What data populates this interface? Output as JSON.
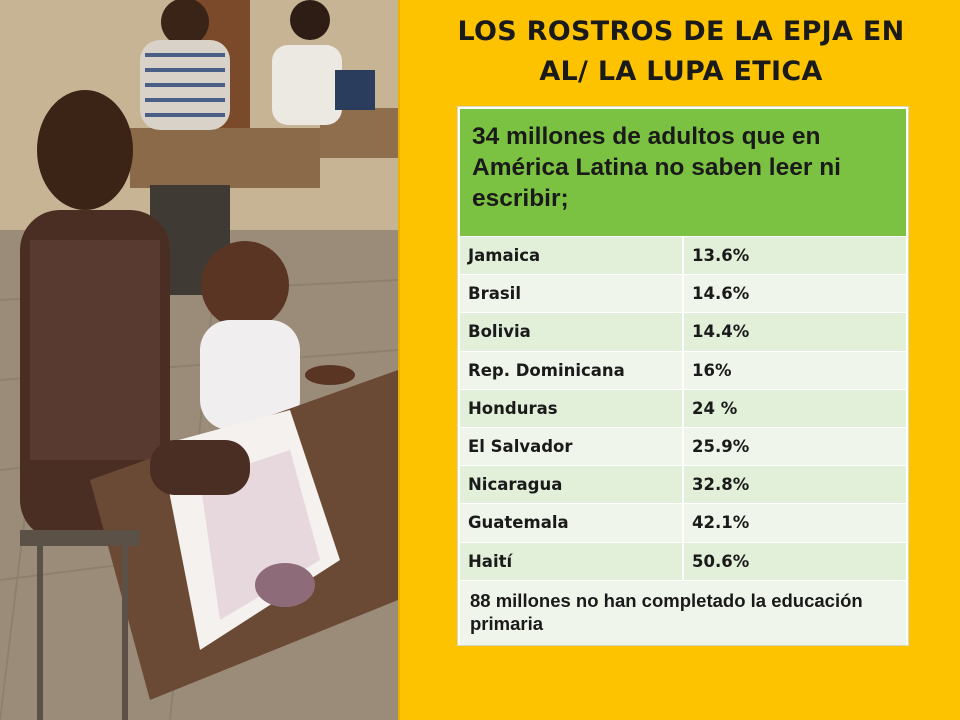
{
  "slide": {
    "title_line1": "LOS ROSTROS DE LA EPJA EN",
    "title_line2": "AL/ LA LUPA ETICA"
  },
  "table": {
    "header": "34 millones de adultos que en América Latina no saben leer ni escribir;",
    "rows": [
      {
        "country": "Jamaica",
        "value": "13.6%"
      },
      {
        "country": "Brasil",
        "value": "14.6%"
      },
      {
        "country": "Bolivia",
        "value": "14.4%"
      },
      {
        "country": "Rep. Dominicana",
        "value": "16%"
      },
      {
        "country": "Honduras",
        "value": "24 %"
      },
      {
        "country": "El Salvador",
        "value": "25.9%"
      },
      {
        "country": "Nicaragua",
        "value": "32.8%"
      },
      {
        "country": "Guatemala",
        "value": "42.1%"
      },
      {
        "country": "Haití",
        "value": "50.6%"
      }
    ],
    "footer": "88 millones no han completado la educación primaria"
  },
  "colors": {
    "background": "#fdc300",
    "header_green": "#7cc242",
    "row_light": "#eff5ea",
    "row_mid": "#e2efd9"
  }
}
